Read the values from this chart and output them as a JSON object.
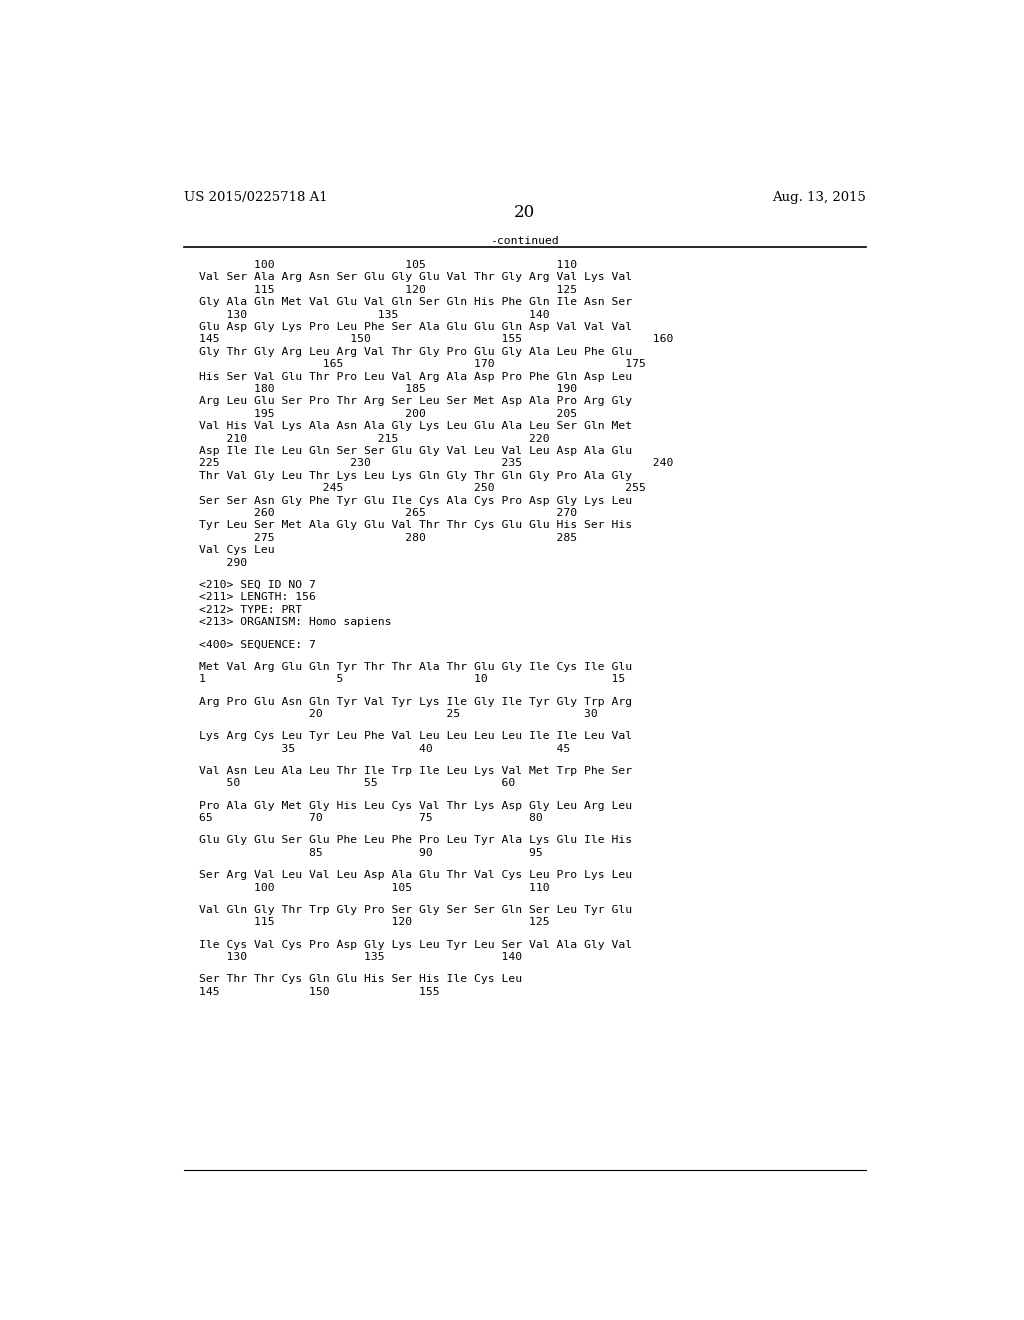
{
  "bg_color": "#ffffff",
  "header_left": "US 2015/0225718 A1",
  "header_right": "Aug. 13, 2015",
  "page_number": "20",
  "continued_label": "-continued",
  "mono_fontsize": 8.2,
  "header_fontsize": 9.5,
  "page_num_fontsize": 12,
  "lines": [
    "        100                   105                   110",
    "Val Ser Ala Arg Asn Ser Glu Gly Glu Val Thr Gly Arg Val Lys Val",
    "        115                   120                   125",
    "Gly Ala Gln Met Val Glu Val Gln Ser Gln His Phe Gln Ile Asn Ser",
    "    130                   135                   140",
    "Glu Asp Gly Lys Pro Leu Phe Ser Ala Glu Glu Gln Asp Val Val Val",
    "145                   150                   155                   160",
    "Gly Thr Gly Arg Leu Arg Val Thr Gly Pro Glu Gly Ala Leu Phe Glu",
    "                  165                   170                   175",
    "His Ser Val Glu Thr Pro Leu Val Arg Ala Asp Pro Phe Gln Asp Leu",
    "        180                   185                   190",
    "Arg Leu Glu Ser Pro Thr Arg Ser Leu Ser Met Asp Ala Pro Arg Gly",
    "        195                   200                   205",
    "Val His Val Lys Ala Asn Ala Gly Lys Leu Glu Ala Leu Ser Gln Met",
    "    210                   215                   220",
    "Asp Ile Ile Leu Gln Ser Ser Glu Gly Val Leu Val Leu Asp Ala Glu",
    "225                   230                   235                   240",
    "Thr Val Gly Leu Thr Lys Leu Lys Gln Gly Thr Gln Gly Pro Ala Gly",
    "                  245                   250                   255",
    "Ser Ser Asn Gly Phe Tyr Glu Ile Cys Ala Cys Pro Asp Gly Lys Leu",
    "        260                   265                   270",
    "Tyr Leu Ser Met Ala Gly Glu Val Thr Thr Cys Glu Glu His Ser His",
    "        275                   280                   285",
    "Val Cys Leu",
    "    290",
    "",
    "<210> SEQ ID NO 7",
    "<211> LENGTH: 156",
    "<212> TYPE: PRT",
    "<213> ORGANISM: Homo sapiens",
    "",
    "<400> SEQUENCE: 7",
    "",
    "Met Val Arg Glu Gln Tyr Thr Thr Ala Thr Glu Gly Ile Cys Ile Glu",
    "1                   5                   10                  15",
    "",
    "Arg Pro Glu Asn Gln Tyr Val Tyr Lys Ile Gly Ile Tyr Gly Trp Arg",
    "                20                  25                  30",
    "",
    "Lys Arg Cys Leu Tyr Leu Phe Val Leu Leu Leu Leu Ile Ile Leu Val",
    "            35                  40                  45",
    "",
    "Val Asn Leu Ala Leu Thr Ile Trp Ile Leu Lys Val Met Trp Phe Ser",
    "    50                  55                  60",
    "",
    "Pro Ala Gly Met Gly His Leu Cys Val Thr Lys Asp Gly Leu Arg Leu",
    "65              70              75              80",
    "",
    "Glu Gly Glu Ser Glu Phe Leu Phe Pro Leu Tyr Ala Lys Glu Ile His",
    "                85              90              95",
    "",
    "Ser Arg Val Leu Val Leu Asp Ala Glu Thr Val Cys Leu Pro Lys Leu",
    "        100                 105                 110",
    "",
    "Val Gln Gly Thr Trp Gly Pro Ser Gly Ser Ser Gln Ser Leu Tyr Glu",
    "        115                 120                 125",
    "",
    "Ile Cys Val Cys Pro Asp Gly Lys Leu Tyr Leu Ser Val Ala Gly Val",
    "    130                 135                 140",
    "",
    "Ser Thr Thr Cys Gln Glu His Ser His Ile Cys Leu",
    "145             150             155"
  ]
}
